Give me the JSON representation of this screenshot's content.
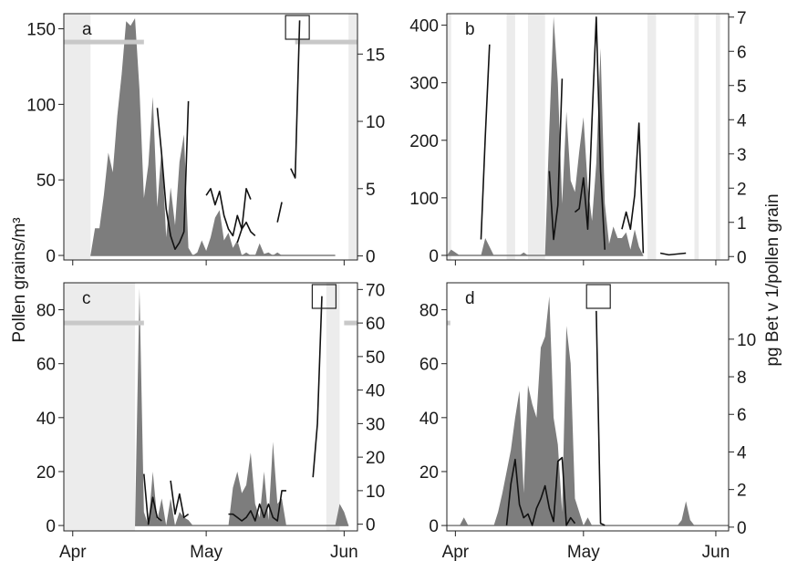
{
  "figure": {
    "ylabel_left": "Pollen grains/m³",
    "ylabel_right": "pg Bet v 1/pollen grain",
    "colors": {
      "pollen_fill": "#7d7d7d",
      "allergen_line": "#111111",
      "shade": "#ececec",
      "pollen_bar": "#c8c8c8",
      "axis": "#222222"
    }
  },
  "chart_data": [
    {
      "panel_label": "a",
      "type": "area",
      "x_unit": "day of year",
      "xlim": [
        89,
        155
      ],
      "xticks": [
        {
          "x": 91,
          "label": "Apr"
        },
        {
          "x": 121,
          "label": "May"
        },
        {
          "x": 152,
          "label": "Jun"
        }
      ],
      "ylim_left": [
        -3,
        160
      ],
      "yticks_left": [
        0,
        50,
        100,
        150
      ],
      "ylim_right": [
        -0.3,
        18
      ],
      "yticks_right": [
        0,
        5,
        10,
        15
      ],
      "shaded_periods": [
        [
          89,
          95
        ],
        [
          153,
          155
        ]
      ],
      "pollen_season_bars": [
        [
          89,
          107
        ],
        [
          141,
          155
        ]
      ],
      "pollen": [
        [
          95,
          0
        ],
        [
          96,
          18
        ],
        [
          97,
          18
        ],
        [
          98,
          40
        ],
        [
          99,
          68
        ],
        [
          100,
          55
        ],
        [
          101,
          92
        ],
        [
          102,
          120
        ],
        [
          103,
          155
        ],
        [
          104,
          152
        ],
        [
          105,
          157
        ],
        [
          106,
          110
        ],
        [
          107,
          38
        ],
        [
          108,
          60
        ],
        [
          109,
          105
        ],
        [
          110,
          32
        ],
        [
          111,
          72
        ],
        [
          112,
          12
        ],
        [
          113,
          45
        ],
        [
          114,
          20
        ],
        [
          115,
          62
        ],
        [
          116,
          80
        ],
        [
          117,
          5
        ],
        [
          118,
          0
        ],
        [
          119,
          2
        ],
        [
          120,
          10
        ],
        [
          121,
          3
        ],
        [
          122,
          12
        ],
        [
          123,
          25
        ],
        [
          124,
          30
        ],
        [
          125,
          10
        ],
        [
          126,
          15
        ],
        [
          127,
          5
        ],
        [
          128,
          10
        ],
        [
          129,
          0
        ],
        [
          130,
          2
        ],
        [
          131,
          0
        ],
        [
          132,
          0
        ],
        [
          133,
          8
        ],
        [
          134,
          1
        ],
        [
          135,
          2
        ],
        [
          136,
          0
        ],
        [
          137,
          2
        ],
        [
          138,
          0
        ],
        [
          139,
          0
        ],
        [
          140,
          0
        ],
        [
          141,
          0
        ],
        [
          150,
          0
        ]
      ],
      "allergen_segments": [
        [
          [
            110,
            11.0
          ],
          [
            111,
            7.5
          ],
          [
            112,
            3.5
          ],
          [
            113,
            1.5
          ],
          [
            114,
            0.5
          ],
          [
            115,
            1.0
          ],
          [
            116,
            1.8
          ],
          [
            117,
            11.5
          ]
        ],
        [
          [
            121,
            4.5
          ],
          [
            122,
            5.0
          ],
          [
            123,
            3.8
          ],
          [
            124,
            4.8
          ],
          [
            125,
            3.0
          ],
          [
            126,
            2.0
          ],
          [
            127,
            1.5
          ],
          [
            128,
            3.0
          ],
          [
            129,
            2.0
          ],
          [
            130,
            5.0
          ],
          [
            131,
            4.2
          ]
        ],
        [
          [
            128,
            1.0
          ],
          [
            129,
            2.0
          ],
          [
            130,
            2.5
          ],
          [
            131,
            1.8
          ],
          [
            132,
            1.5
          ]
        ],
        [
          [
            137,
            2.5
          ],
          [
            138,
            4.0
          ]
        ],
        [
          [
            140,
            6.5
          ],
          [
            141,
            5.8
          ],
          [
            142,
            17.5
          ]
        ]
      ],
      "highlight_box": {
        "x": 141.5,
        "y_right": 17.5
      }
    },
    {
      "panel_label": "b",
      "type": "area",
      "x_unit": "day of year",
      "xlim": [
        89,
        155
      ],
      "xticks": [
        {
          "x": 91,
          "label": "Apr"
        },
        {
          "x": 121,
          "label": "May"
        },
        {
          "x": 152,
          "label": "Jun"
        }
      ],
      "ylim_left": [
        -8,
        420
      ],
      "yticks_left": [
        0,
        100,
        200,
        300,
        400
      ],
      "ylim_right": [
        -0.1,
        7.1
      ],
      "yticks_right": [
        0,
        1,
        2,
        3,
        4,
        5,
        6,
        7
      ],
      "shaded_periods": [
        [
          89,
          90
        ],
        [
          103,
          105
        ],
        [
          108,
          112
        ],
        [
          136,
          138
        ],
        [
          147,
          148
        ],
        [
          152,
          153
        ]
      ],
      "pollen_season_bars": [],
      "pollen": [
        [
          89,
          0
        ],
        [
          90,
          10
        ],
        [
          91,
          5
        ],
        [
          92,
          0
        ],
        [
          97,
          0
        ],
        [
          98,
          30
        ],
        [
          99,
          15
        ],
        [
          100,
          0
        ],
        [
          106,
          0
        ],
        [
          107,
          5
        ],
        [
          108,
          0
        ],
        [
          112,
          0
        ],
        [
          113,
          220
        ],
        [
          114,
          415
        ],
        [
          115,
          300
        ],
        [
          116,
          90
        ],
        [
          117,
          250
        ],
        [
          118,
          130
        ],
        [
          119,
          110
        ],
        [
          120,
          180
        ],
        [
          121,
          240
        ],
        [
          122,
          120
        ],
        [
          123,
          60
        ],
        [
          124,
          160
        ],
        [
          125,
          360
        ],
        [
          126,
          90
        ],
        [
          127,
          20
        ],
        [
          128,
          50
        ],
        [
          129,
          30
        ],
        [
          130,
          30
        ],
        [
          131,
          40
        ],
        [
          132,
          10
        ],
        [
          133,
          45
        ],
        [
          134,
          15
        ],
        [
          135,
          0
        ]
      ],
      "allergen_segments": [
        [
          [
            97,
            0.5
          ],
          [
            98,
            3.5
          ],
          [
            99,
            6.2
          ]
        ],
        [
          [
            113,
            2.5
          ],
          [
            114,
            0.5
          ],
          [
            115,
            1.5
          ],
          [
            116,
            5.2
          ]
        ],
        [
          [
            119,
            1.3
          ],
          [
            120,
            1.4
          ],
          [
            121,
            2.3
          ],
          [
            122,
            0.8
          ],
          [
            123,
            4.0
          ],
          [
            124,
            7.0
          ],
          [
            125,
            2.5
          ],
          [
            126,
            0.2
          ]
        ],
        [
          [
            130,
            0.8
          ],
          [
            131,
            1.3
          ],
          [
            132,
            0.8
          ],
          [
            133,
            1.8
          ],
          [
            134,
            3.9
          ],
          [
            135,
            0.1
          ]
        ],
        [
          [
            139,
            0.1
          ],
          [
            141,
            0.05
          ],
          [
            145,
            0.1
          ]
        ]
      ],
      "highlight_box": null
    },
    {
      "panel_label": "c",
      "type": "area",
      "x_unit": "day of year",
      "xlim": [
        89,
        155
      ],
      "xticks": [
        {
          "x": 91,
          "label": "Apr"
        },
        {
          "x": 121,
          "label": "May"
        },
        {
          "x": 152,
          "label": "Jun"
        }
      ],
      "ylim_left": [
        -2,
        90
      ],
      "yticks_left": [
        0,
        20,
        40,
        60,
        80
      ],
      "ylim_right": [
        -2,
        72
      ],
      "yticks_right": [
        0,
        10,
        20,
        30,
        40,
        50,
        60,
        70
      ],
      "shaded_periods": [
        [
          89,
          105
        ],
        [
          148,
          151
        ]
      ],
      "pollen_season_bars": [
        [
          89,
          107
        ],
        [
          152,
          155
        ]
      ],
      "pollen": [
        [
          105,
          0
        ],
        [
          106,
          88
        ],
        [
          107,
          5
        ],
        [
          108,
          0
        ],
        [
          109,
          20
        ],
        [
          110,
          2
        ],
        [
          111,
          10
        ],
        [
          112,
          0
        ],
        [
          113,
          10
        ],
        [
          114,
          0
        ],
        [
          115,
          5
        ],
        [
          116,
          3
        ],
        [
          117,
          2
        ],
        [
          118,
          0
        ],
        [
          119,
          0
        ],
        [
          121,
          0
        ],
        [
          126,
          0
        ],
        [
          127,
          14
        ],
        [
          128,
          20
        ],
        [
          129,
          12
        ],
        [
          130,
          15
        ],
        [
          131,
          27
        ],
        [
          132,
          8
        ],
        [
          133,
          3
        ],
        [
          134,
          20
        ],
        [
          135,
          2
        ],
        [
          136,
          31
        ],
        [
          137,
          8
        ],
        [
          138,
          10
        ],
        [
          139,
          0
        ],
        [
          141,
          0
        ],
        [
          148,
          0
        ],
        [
          150,
          0
        ],
        [
          151,
          8
        ],
        [
          152,
          5
        ],
        [
          153,
          0
        ]
      ],
      "allergen_segments": [
        [
          [
            107,
            15
          ],
          [
            108,
            0
          ],
          [
            109,
            8
          ],
          [
            110,
            2
          ],
          [
            111,
            1
          ]
        ],
        [
          [
            113,
            13
          ],
          [
            114,
            3
          ],
          [
            115,
            9
          ],
          [
            116,
            2
          ],
          [
            117,
            3
          ]
        ],
        [
          [
            126,
            3
          ],
          [
            127,
            3
          ],
          [
            128,
            2
          ],
          [
            129,
            1
          ],
          [
            130,
            2
          ],
          [
            131,
            4
          ],
          [
            132,
            1
          ],
          [
            133,
            6
          ],
          [
            134,
            2
          ],
          [
            135,
            6
          ],
          [
            136,
            2
          ],
          [
            137,
            1
          ],
          [
            138,
            10
          ],
          [
            139,
            10
          ]
        ],
        [
          [
            145,
            14
          ],
          [
            146,
            30
          ],
          [
            147,
            68
          ]
        ]
      ],
      "highlight_box": {
        "x": 147.5,
        "y_right": 68
      }
    },
    {
      "panel_label": "d",
      "type": "area",
      "x_unit": "day of year",
      "xlim": [
        89,
        155
      ],
      "xticks": [
        {
          "x": 91,
          "label": "Apr"
        },
        {
          "x": 121,
          "label": "May"
        },
        {
          "x": 152,
          "label": "Jun"
        }
      ],
      "ylim_left": [
        -2,
        90
      ],
      "yticks_left": [
        0,
        20,
        40,
        60,
        80
      ],
      "ylim_right": [
        -0.2,
        13
      ],
      "yticks_right": [
        0,
        2,
        4,
        6,
        8,
        10
      ],
      "shaded_periods": [],
      "pollen_season_bars": [
        [
          89,
          89.8
        ]
      ],
      "pollen": [
        [
          89,
          0
        ],
        [
          92,
          0
        ],
        [
          93,
          3
        ],
        [
          94,
          0
        ],
        [
          100,
          0
        ],
        [
          101,
          5
        ],
        [
          102,
          12
        ],
        [
          103,
          20
        ],
        [
          104,
          28
        ],
        [
          105,
          40
        ],
        [
          106,
          50
        ],
        [
          107,
          12
        ],
        [
          108,
          52
        ],
        [
          109,
          45
        ],
        [
          110,
          40
        ],
        [
          111,
          66
        ],
        [
          112,
          70
        ],
        [
          113,
          85
        ],
        [
          114,
          40
        ],
        [
          115,
          30
        ],
        [
          116,
          5
        ],
        [
          117,
          74
        ],
        [
          118,
          60
        ],
        [
          119,
          10
        ],
        [
          120,
          5
        ],
        [
          121,
          0
        ],
        [
          122,
          3
        ],
        [
          123,
          0
        ],
        [
          143,
          0
        ],
        [
          144,
          2
        ],
        [
          145,
          9
        ],
        [
          146,
          2
        ],
        [
          147,
          0
        ],
        [
          155,
          0
        ]
      ],
      "allergen_segments": [
        [
          [
            103,
            0.1
          ],
          [
            104,
            2.3
          ],
          [
            105,
            3.6
          ],
          [
            106,
            1.2
          ],
          [
            107,
            0.5
          ],
          [
            108,
            0.7
          ],
          [
            109,
            0.1
          ],
          [
            110,
            1.0
          ],
          [
            111,
            1.5
          ],
          [
            112,
            2.2
          ],
          [
            113,
            1.0
          ],
          [
            114,
            0.3
          ],
          [
            115,
            3.5
          ],
          [
            116,
            3.7
          ],
          [
            117,
            0.1
          ],
          [
            118,
            0.5
          ],
          [
            119,
            0.2
          ]
        ],
        [
          [
            124,
            11.5
          ],
          [
            125,
            0.2
          ],
          [
            126,
            0.1
          ]
        ]
      ],
      "highlight_box": {
        "x": 124.5,
        "y_right": 11.5
      }
    }
  ]
}
